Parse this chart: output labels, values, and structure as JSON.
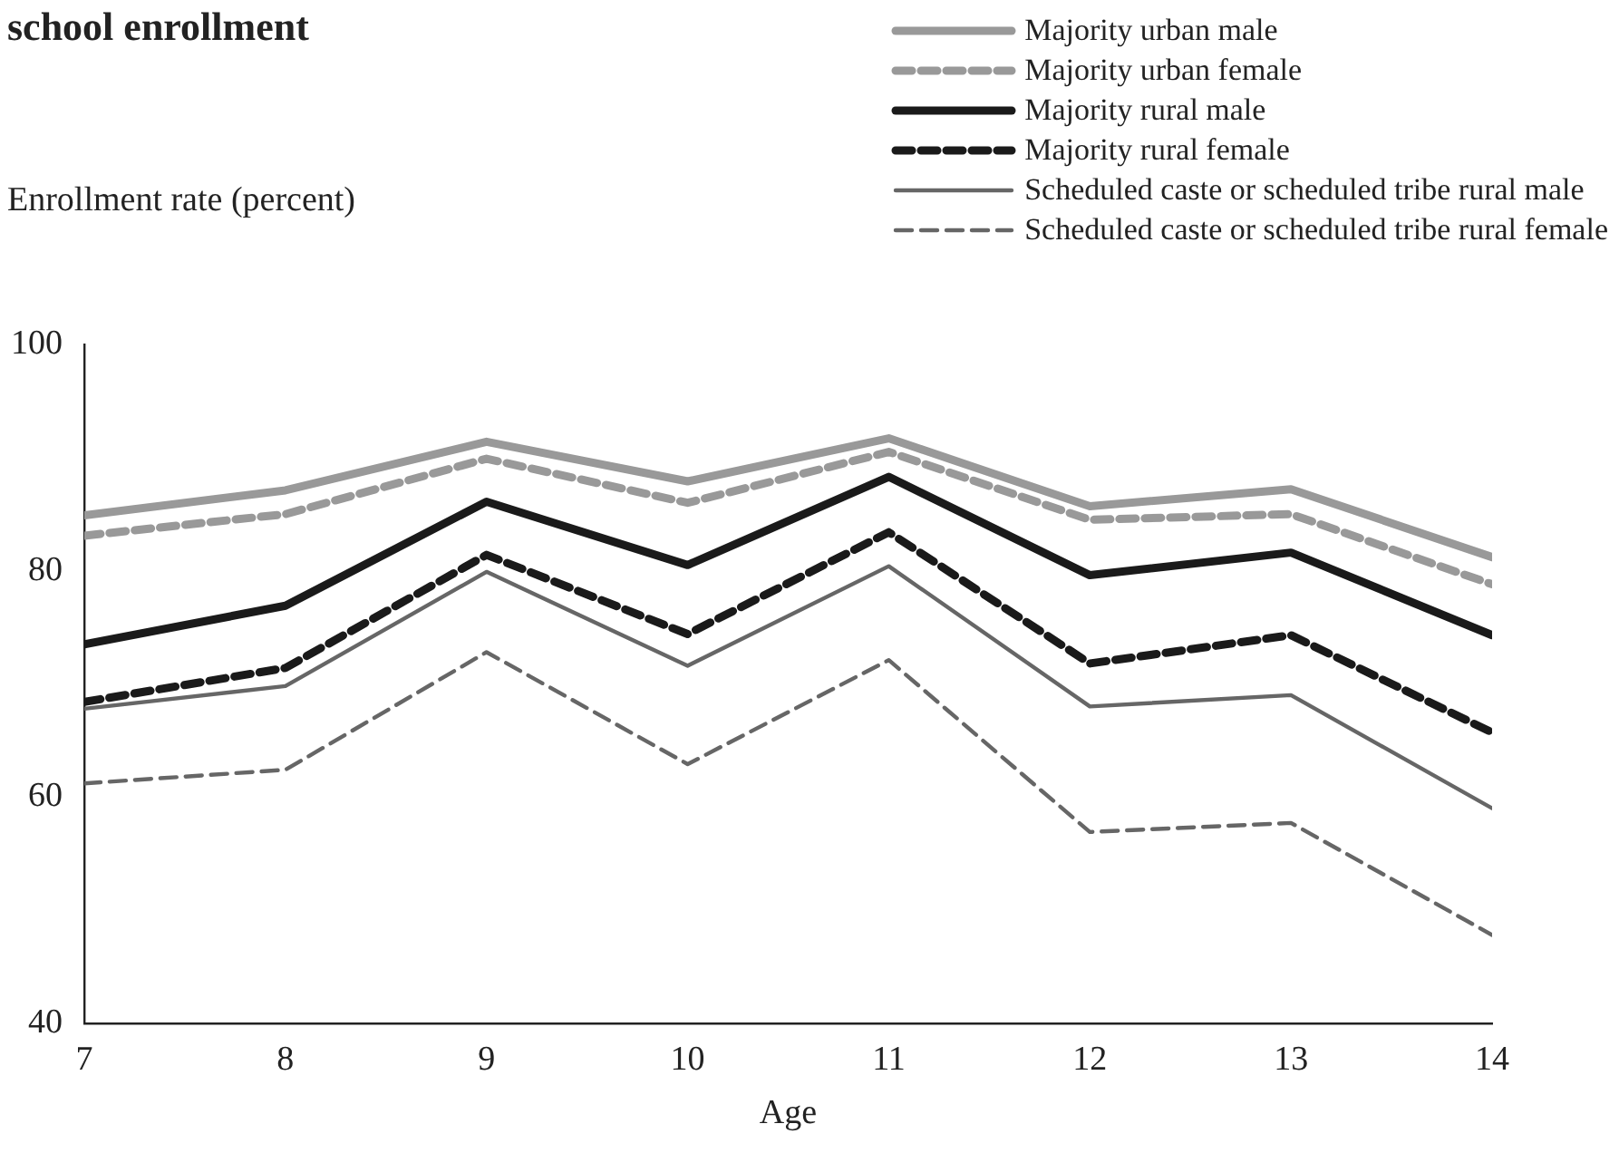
{
  "chart_data": {
    "type": "line",
    "title": "school enrollment",
    "ylabel": "Enrollment rate (percent)",
    "xlabel": "Age",
    "x": [
      7,
      8,
      9,
      10,
      11,
      12,
      13,
      14
    ],
    "xlim": [
      7,
      14
    ],
    "xticks": [
      7,
      8,
      9,
      10,
      11,
      12,
      13,
      14
    ],
    "ylim": [
      40,
      100
    ],
    "yticks": [
      40,
      60,
      80,
      100
    ],
    "grid": false,
    "legend": "top right",
    "marker": "none",
    "series": [
      {
        "name": "Majority urban male",
        "color": "#999999",
        "line_style": "solid",
        "values": [
          84.9,
          87.1,
          91.4,
          87.9,
          91.7,
          85.7,
          87.2,
          81.2
        ]
      },
      {
        "name": "Majority urban female",
        "color": "#999999",
        "line_style": "dashed",
        "values": [
          83.1,
          85.0,
          89.9,
          86.0,
          90.5,
          84.5,
          85.0,
          78.8
        ]
      },
      {
        "name": "Majority rural male",
        "color": "#1a1a1a",
        "line_style": "solid",
        "values": [
          73.5,
          76.9,
          86.1,
          80.5,
          88.3,
          79.6,
          81.6,
          74.3
        ]
      },
      {
        "name": "Majority rural female",
        "color": "#1a1a1a",
        "line_style": "dashed",
        "values": [
          68.4,
          71.4,
          81.4,
          74.4,
          83.4,
          71.8,
          74.3,
          65.7
        ]
      },
      {
        "name": "Scheduled caste or scheduled tribe rural male",
        "color": "#666666",
        "line_style": "solid",
        "values": [
          67.8,
          69.8,
          79.9,
          71.6,
          80.4,
          68.0,
          69.0,
          59.0
        ]
      },
      {
        "name": "Scheduled caste or scheduled tribe rural female",
        "color": "#666666",
        "line_style": "dashed",
        "values": [
          61.2,
          62.4,
          72.8,
          62.9,
          72.1,
          56.9,
          57.7,
          47.8
        ]
      }
    ]
  }
}
